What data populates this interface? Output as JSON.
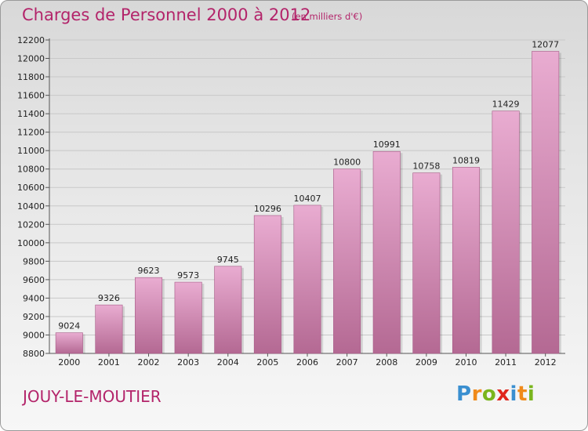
{
  "header": {
    "title": "Charges de Personnel 2000 à 2012",
    "subtitle": "(en milliers d'€)"
  },
  "footer": {
    "commune": "JOUY-LE-MOUTIER",
    "logo_letters": [
      "P",
      "r",
      "o",
      "x",
      "i",
      "t",
      "i"
    ],
    "logo_colors": [
      "#3a8fd0",
      "#f08a1a",
      "#7ab51d",
      "#e0261d",
      "#3a8fd0",
      "#f08a1a",
      "#7ab51d"
    ]
  },
  "colors": {
    "accent": "#b3246a",
    "bar_top": "#e9acd1",
    "bar_bottom": "#b46993",
    "bar_edge": "#a55985",
    "grid": "#c8c8c8"
  },
  "chart_data": {
    "type": "bar",
    "title": "Charges de Personnel 2000 à 2012",
    "subtitle": "(en milliers d'€)",
    "categories": [
      "2000",
      "2001",
      "2002",
      "2003",
      "2004",
      "2005",
      "2006",
      "2007",
      "2008",
      "2009",
      "2010",
      "2011",
      "2012"
    ],
    "values": [
      9024,
      9326,
      9623,
      9573,
      9745,
      10296,
      10407,
      10800,
      10991,
      10758,
      10819,
      11429,
      12077
    ],
    "ylim": [
      8800,
      12200
    ],
    "yticks": [
      8800,
      9000,
      9200,
      9400,
      9600,
      9800,
      10000,
      10200,
      10400,
      10600,
      10800,
      11000,
      11200,
      11400,
      11600,
      11800,
      12000,
      12200
    ],
    "grid": true,
    "xlabel": "",
    "ylabel": ""
  }
}
